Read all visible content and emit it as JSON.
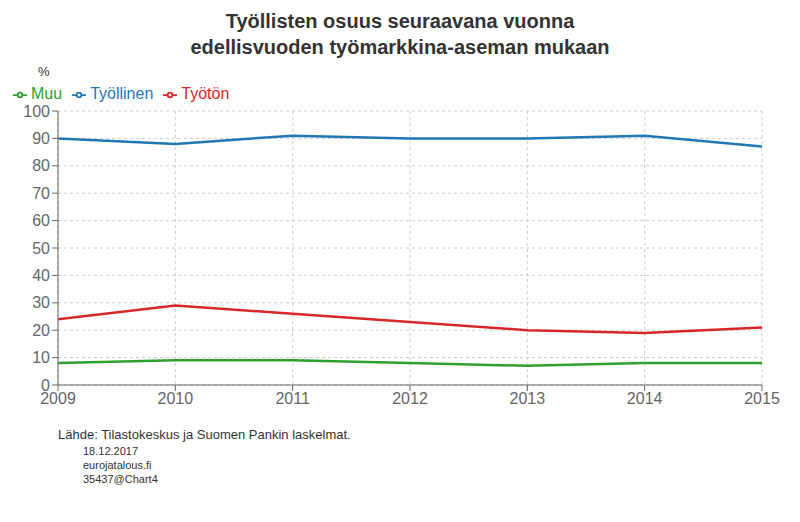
{
  "chart_data": {
    "type": "line",
    "title": "Työllisten osuus seuraavana vuonna",
    "subtitle": "edellisvuoden työmarkkina-aseman mukaan",
    "y_label": "%",
    "x": [
      2009,
      2010,
      2011,
      2012,
      2013,
      2014,
      2015
    ],
    "series": [
      {
        "name": "Työllinen",
        "color": "#1f77b4",
        "values": [
          90,
          88,
          91,
          90,
          90,
          91,
          87
        ]
      },
      {
        "name": "Työtön",
        "color": "#d62728",
        "values": [
          24,
          29,
          26,
          23,
          20,
          19,
          21
        ]
      },
      {
        "name": "Muu",
        "color": "#2ca02c",
        "values": [
          8,
          9,
          9,
          8,
          7,
          8,
          8
        ]
      }
    ],
    "xlim": [
      2009,
      2015
    ],
    "xticks": [
      2009,
      2010,
      2011,
      2012,
      2013,
      2014,
      2015
    ],
    "ylim": [
      0,
      100
    ],
    "yticks": [
      0,
      10,
      20,
      30,
      40,
      50,
      60,
      70,
      80,
      90,
      100
    ],
    "grid": true,
    "legend": "upper left",
    "annotations": [
      "Lähde: Tilastokeskus ja Suomen Pankin laskelmat.",
      "18.12.2017",
      "eurojatalous.fi",
      "35437@Chart4"
    ]
  }
}
